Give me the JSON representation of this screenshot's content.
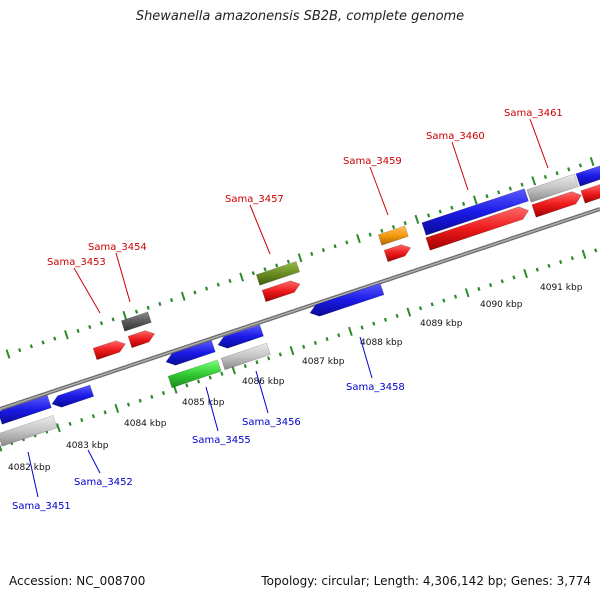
{
  "title": "Shewanella amazonensis SB2B, complete genome",
  "footer": {
    "accession": "Accession: NC_008700",
    "topology": "Topology: circular; Length: 4,306,142 bp; Genes: 3,774"
  },
  "colors": {
    "backbone": "#8a8a8a",
    "tick": "#2d8a2d",
    "forward_label": "#cc0000",
    "reverse_label": "#0000cc",
    "blue_gene": "#1a1ae6",
    "red_gene": "#e61a1a",
    "grey_gene": "#b8b8b8",
    "dark_gene": "#5a5a5a",
    "olive_gene": "#6b8e23",
    "orange_gene": "#f59a0c",
    "green_gene": "#33cc33"
  },
  "scale_labels": [
    "4082 kbp",
    "4083 kbp",
    "4084 kbp",
    "4085 kbp",
    "4086 kbp",
    "4087 kbp",
    "4088 kbp",
    "4089 kbp",
    "4090 kbp",
    "4091 kbp"
  ],
  "forward_genes": [
    "Sama_3453",
    "Sama_3454",
    "Sama_3457",
    "Sama_3459",
    "Sama_3460",
    "Sama_3461"
  ],
  "reverse_genes": [
    "Sama_3451",
    "Sama_3452",
    "Sama_3455",
    "Sama_3456",
    "Sama_3458"
  ]
}
